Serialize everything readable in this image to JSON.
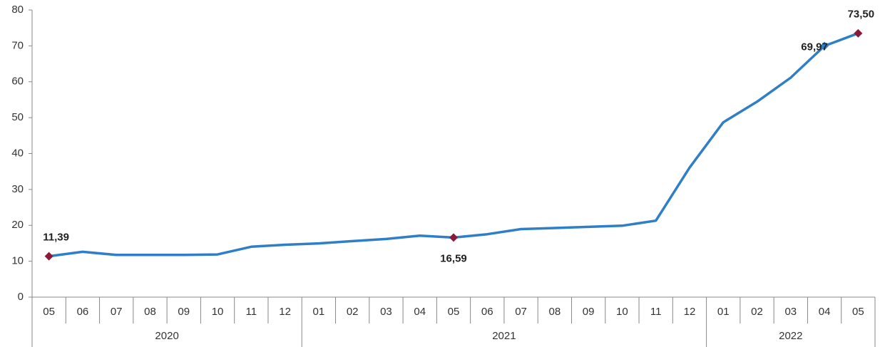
{
  "chart_data": {
    "type": "line",
    "x": [
      {
        "month": "05",
        "year": "2020"
      },
      {
        "month": "06",
        "year": "2020"
      },
      {
        "month": "07",
        "year": "2020"
      },
      {
        "month": "08",
        "year": "2020"
      },
      {
        "month": "09",
        "year": "2020"
      },
      {
        "month": "10",
        "year": "2020"
      },
      {
        "month": "11",
        "year": "2020"
      },
      {
        "month": "12",
        "year": "2020"
      },
      {
        "month": "01",
        "year": "2021"
      },
      {
        "month": "02",
        "year": "2021"
      },
      {
        "month": "03",
        "year": "2021"
      },
      {
        "month": "04",
        "year": "2021"
      },
      {
        "month": "05",
        "year": "2021"
      },
      {
        "month": "06",
        "year": "2021"
      },
      {
        "month": "07",
        "year": "2021"
      },
      {
        "month": "08",
        "year": "2021"
      },
      {
        "month": "09",
        "year": "2021"
      },
      {
        "month": "10",
        "year": "2021"
      },
      {
        "month": "11",
        "year": "2021"
      },
      {
        "month": "12",
        "year": "2021"
      },
      {
        "month": "01",
        "year": "2022"
      },
      {
        "month": "02",
        "year": "2022"
      },
      {
        "month": "03",
        "year": "2022"
      },
      {
        "month": "04",
        "year": "2022"
      },
      {
        "month": "05",
        "year": "2022"
      }
    ],
    "years": [
      "2020",
      "2021",
      "2022"
    ],
    "values": [
      11.39,
      12.62,
      11.76,
      11.77,
      11.75,
      11.89,
      14.03,
      14.6,
      14.97,
      15.61,
      16.19,
      17.14,
      16.59,
      17.53,
      18.95,
      19.25,
      19.58,
      19.89,
      21.31,
      36.08,
      48.69,
      54.44,
      61.14,
      69.97,
      73.5
    ],
    "annotations": [
      {
        "index": 0,
        "text": "11,39",
        "position": "above"
      },
      {
        "index": 12,
        "text": "16,59",
        "position": "below"
      },
      {
        "index": 23,
        "text": "69,97",
        "position": "left"
      },
      {
        "index": 24,
        "text": "73,50",
        "position": "above"
      }
    ],
    "highlighted_points": [
      0,
      12,
      24
    ],
    "ylim": [
      0,
      80
    ],
    "yticks": [
      "0",
      "10",
      "20",
      "30",
      "40",
      "50",
      "60",
      "70",
      "80"
    ],
    "title": "",
    "xlabel": "",
    "ylabel": "",
    "grid": false,
    "legend": "none",
    "colors": {
      "line": "#2f7fc8",
      "marker_highlight": "#8b1a3a",
      "marker_normal": "#2f7fc8",
      "axis": "#888888"
    }
  }
}
